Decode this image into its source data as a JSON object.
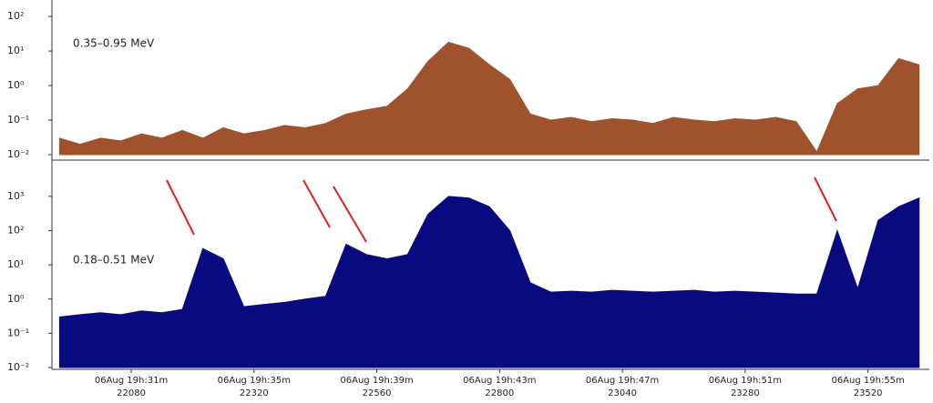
{
  "chart_data": [
    {
      "type": "area",
      "annotation": "0.35–0.95 MeV",
      "color": "#a0522d",
      "log_y": true,
      "x": [
        21940,
        21980,
        22020,
        22060,
        22100,
        22140,
        22180,
        22220,
        22260,
        22300,
        22340,
        22380,
        22420,
        22460,
        22500,
        22540,
        22580,
        22620,
        22660,
        22700,
        22740,
        22780,
        22820,
        22860,
        22900,
        22940,
        22980,
        23020,
        23060,
        23100,
        23140,
        23180,
        23220,
        23260,
        23300,
        23340,
        23380,
        23420,
        23460,
        23500,
        23540,
        23580,
        23620
      ],
      "values": [
        0.03,
        0.02,
        0.03,
        0.025,
        0.04,
        0.03,
        0.05,
        0.03,
        0.06,
        0.04,
        0.05,
        0.07,
        0.06,
        0.08,
        0.15,
        0.2,
        0.25,
        0.8,
        5,
        18,
        12,
        4,
        1.5,
        0.15,
        0.1,
        0.12,
        0.09,
        0.11,
        0.1,
        0.08,
        0.12,
        0.1,
        0.09,
        0.11,
        0.1,
        0.12,
        0.09,
        0.012,
        0.3,
        0.8,
        1,
        6,
        4
      ],
      "xlim": [
        21925,
        23640
      ],
      "ylim": [
        0.01,
        300
      ],
      "yticks": [
        {
          "value": 100,
          "label": "10²"
        },
        {
          "value": 10,
          "label": "10¹"
        },
        {
          "value": 1,
          "label": "10⁰"
        },
        {
          "value": 0.1,
          "label": "10⁻¹"
        },
        {
          "value": 0.01,
          "label": "10⁻²"
        }
      ]
    },
    {
      "type": "area",
      "annotation": "0.18–0.51 MeV",
      "color": "#0a0a80",
      "log_y": true,
      "x": [
        21940,
        21980,
        22020,
        22060,
        22100,
        22140,
        22180,
        22220,
        22260,
        22300,
        22340,
        22380,
        22420,
        22460,
        22500,
        22540,
        22580,
        22620,
        22660,
        22700,
        22740,
        22780,
        22820,
        22860,
        22900,
        22940,
        22980,
        23020,
        23060,
        23100,
        23140,
        23180,
        23220,
        23260,
        23300,
        23340,
        23380,
        23420,
        23460,
        23500,
        23540,
        23580,
        23620
      ],
      "values": [
        0.3,
        0.35,
        0.4,
        0.35,
        0.45,
        0.4,
        0.5,
        30,
        15,
        0.6,
        0.7,
        0.8,
        1,
        1.2,
        40,
        20,
        15,
        20,
        300,
        1000,
        900,
        500,
        100,
        3,
        1.6,
        1.7,
        1.6,
        1.8,
        1.7,
        1.6,
        1.7,
        1.8,
        1.6,
        1.7,
        1.6,
        1.5,
        1.4,
        1.4,
        100,
        2,
        200,
        500,
        900
      ],
      "xlim": [
        21925,
        23640
      ],
      "ylim": [
        0.01,
        9000
      ],
      "yticks": [
        {
          "value": 1000,
          "label": "10³"
        },
        {
          "value": 100,
          "label": "10²"
        },
        {
          "value": 10,
          "label": "10¹"
        },
        {
          "value": 1,
          "label": "10⁰"
        },
        {
          "value": 0.1,
          "label": "10⁻¹"
        },
        {
          "value": 0.01,
          "label": "10⁻²"
        }
      ],
      "xticks": [
        22080,
        22320,
        22560,
        22800,
        23040,
        23280,
        23520
      ],
      "xtick_times": [
        "06Aug 19h:31m",
        "06Aug 19h:35m",
        "06Aug 19h:39m",
        "06Aug 19h:43m",
        "06Aug 19h:47m",
        "06Aug 19h:51m",
        "06Aug 19h:55m"
      ]
    }
  ]
}
